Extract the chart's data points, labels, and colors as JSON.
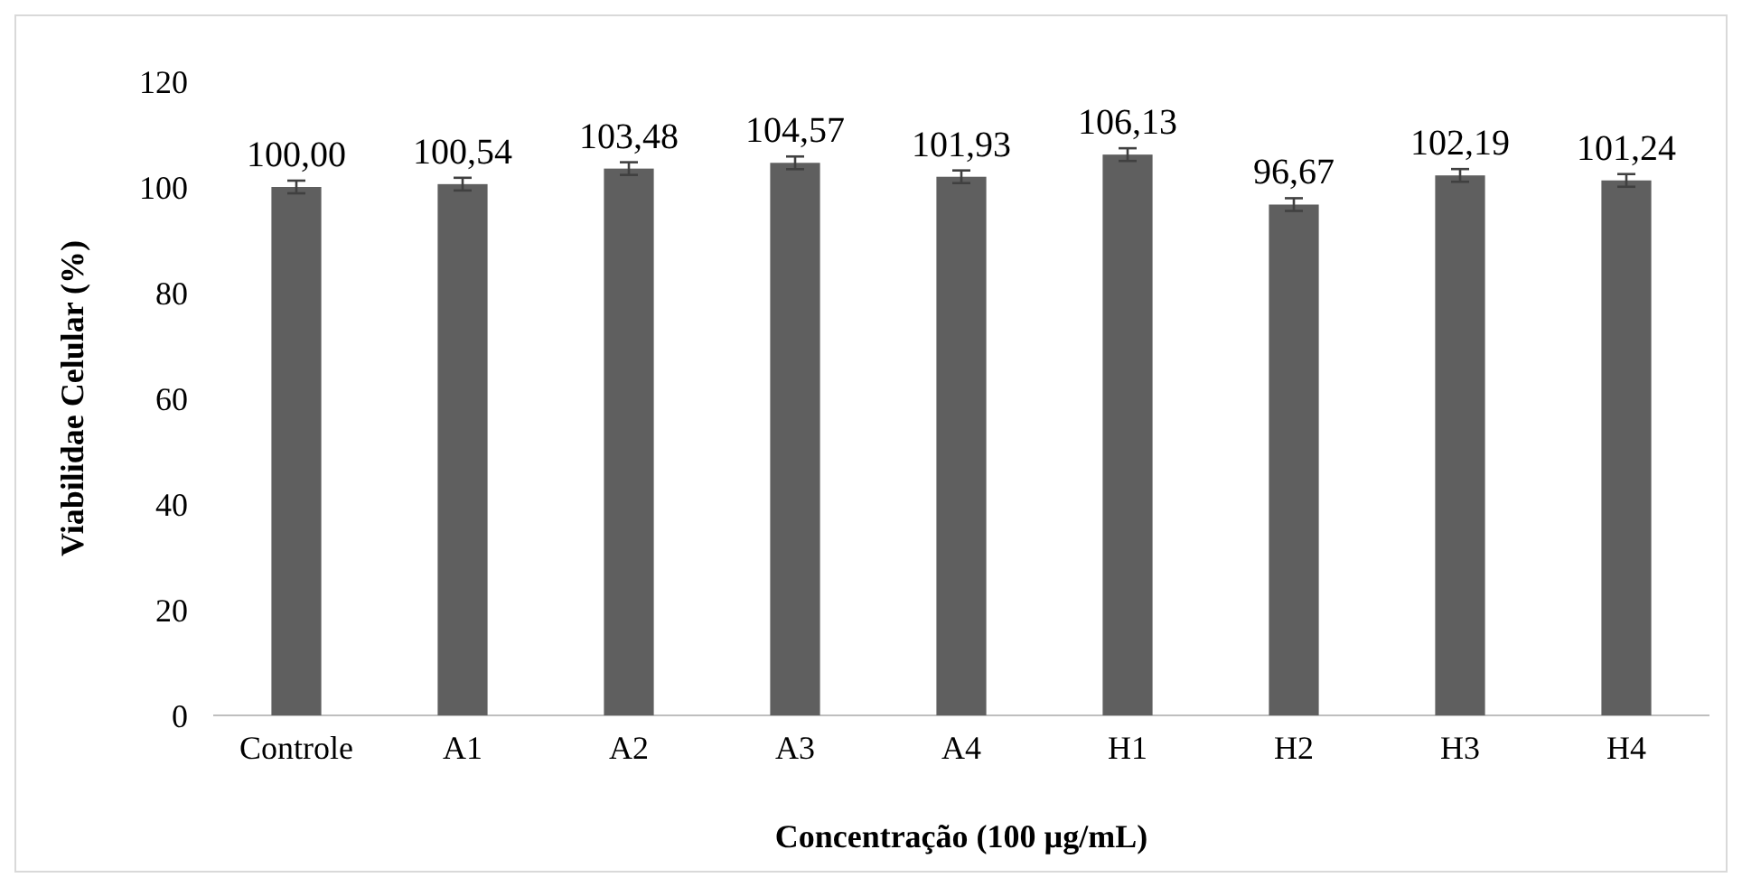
{
  "chart_data": {
    "type": "bar",
    "xlabel": "Concentração (100 µg/mL)",
    "ylabel": "Viabilidae Celular (%)",
    "categories": [
      "Controle",
      "A1",
      "A2",
      "A3",
      "A4",
      "H1",
      "H2",
      "H3",
      "H4"
    ],
    "values": [
      100.0,
      100.54,
      103.48,
      104.57,
      101.93,
      106.13,
      96.67,
      102.19,
      101.24
    ],
    "errors": [
      1.2,
      1.2,
      1.2,
      1.2,
      1.2,
      1.2,
      1.2,
      1.2,
      1.2
    ],
    "value_labels": [
      "100,00",
      "100,54",
      "103,48",
      "104,57",
      "101,93",
      "106,13",
      "96,67",
      "102,19",
      "101,24"
    ],
    "color": "#5f5f5f",
    "ylim": [
      0,
      120
    ],
    "yticks": [
      0,
      20,
      40,
      60,
      80,
      100,
      120
    ],
    "grid": false
  }
}
